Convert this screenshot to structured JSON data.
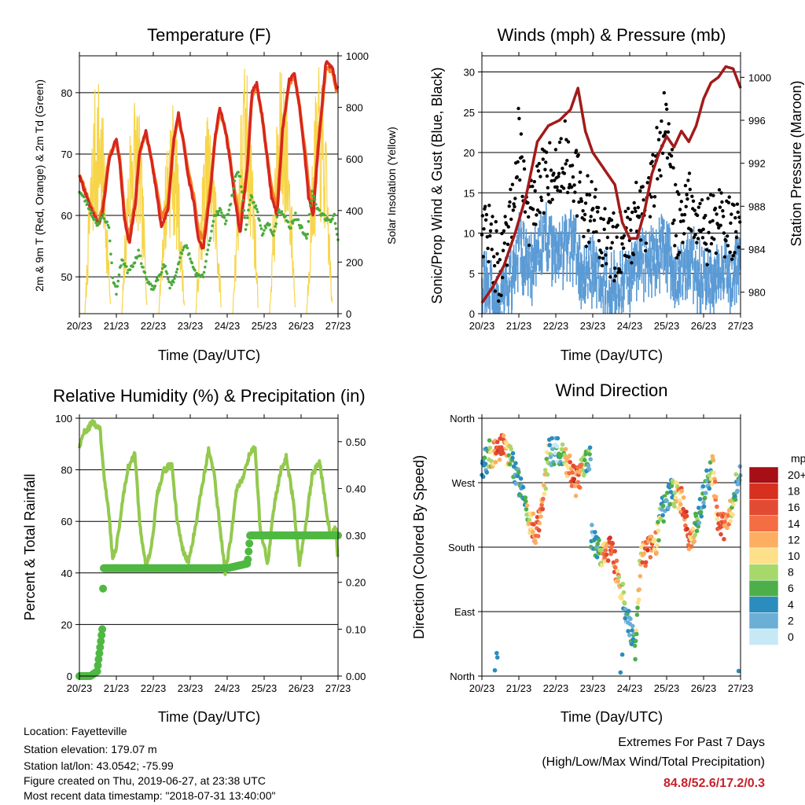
{
  "x_ticks": [
    "20/23",
    "21/23",
    "22/23",
    "23/23",
    "24/23",
    "25/23",
    "26/23",
    "27/23"
  ],
  "x_label": "Time (Day/UTC)",
  "panels": {
    "temperature": {
      "title": "Temperature (F)",
      "ylabel_left": "2m & 9m T (Red, Orange) & 2m Td (Green)",
      "ylabel_right": "Solar Insolation (Yellow)",
      "left_ticks": [
        "50",
        "60",
        "70",
        "80"
      ],
      "right_ticks": [
        "0",
        "200",
        "400",
        "600",
        "800",
        "1000"
      ]
    },
    "winds": {
      "title": "Winds (mph) & Pressure (mb)",
      "ylabel_left": "Sonic/Prop Wind & Gust (Blue, Black)",
      "ylabel_right": "Station Pressure (Maroon)",
      "left_ticks": [
        "0",
        "5",
        "10",
        "15",
        "20",
        "25",
        "30"
      ],
      "right_ticks": [
        "980",
        "984",
        "988",
        "992",
        "996",
        "1000"
      ]
    },
    "humidity": {
      "title": "Relative Humidity (%) & Precipitation (in)",
      "ylabel_left": "Percent & Total Rainfall",
      "left_ticks": [
        "0",
        "20",
        "40",
        "60",
        "80",
        "100"
      ],
      "right_ticks": [
        "0.00",
        "0.10",
        "0.20",
        "0.30",
        "0.40",
        "0.50"
      ]
    },
    "direction": {
      "title": "Wind Direction",
      "ylabel_left": "Direction (Colored By Speed)",
      "left_ticks": [
        "North",
        "East",
        "South",
        "West",
        "North"
      ],
      "legend_title": "mph",
      "legend_labels": [
        "20+",
        "18",
        "16",
        "14",
        "12",
        "10",
        "8",
        "6",
        "4",
        "2",
        "0"
      ],
      "legend_colors": [
        "#a50f15",
        "#d7301f",
        "#e34a33",
        "#f46d43",
        "#fdae61",
        "#fee08b",
        "#a6d96a",
        "#4daf4a",
        "#2b8cbe",
        "#6baed6",
        "#c6e9f5"
      ]
    }
  },
  "info": {
    "location": "Location: Fayetteville",
    "elevation": "Station elevation: 179.07 m",
    "latlon": "Station lat/lon: 43.0542; -75.99",
    "created": "Figure created on Thu, 2019-06-27, at 23:38 UTC",
    "recent": "Most recent data timestamp: \"2018-07-31 13:40:00\""
  },
  "extremes": {
    "title": "Extremes For Past 7 Days",
    "subtitle": "(High/Low/Max Wind/Total Precipitation)",
    "values": "84.8/52.6/17.2/0.3",
    "color": "#c8202a"
  },
  "colors": {
    "temp_2m": "#d7261e",
    "temp_9m": "#f58025",
    "dewpoint": "#4aab3c",
    "solar": "#f7d54a",
    "wind": "#5b9bd5",
    "gust": "#000000",
    "pressure": "#a31a1a",
    "rh": "#93c94e",
    "precip": "#4fb842"
  },
  "chart_data": [
    {
      "type": "line",
      "title": "Temperature (F)",
      "x_range": [
        "20/23",
        "27/23"
      ],
      "ylim": [
        44,
        86
      ],
      "ylim_right": [
        0,
        1000
      ],
      "series": [
        {
          "key": "t2m",
          "x": [
            20.0,
            20.28,
            20.52,
            20.62,
            20.8,
            21.0,
            21.1,
            21.22,
            21.35,
            21.52,
            21.62,
            21.8,
            21.95,
            22.08,
            22.22,
            22.4,
            22.55,
            22.68,
            22.82,
            22.95,
            23.1,
            23.22,
            23.35,
            23.55,
            23.68,
            23.8,
            23.95,
            24.05,
            24.2,
            24.35,
            24.55,
            24.67,
            24.8,
            24.95,
            25.05,
            25.2,
            25.35,
            25.5,
            25.68,
            25.82,
            25.95,
            26.1,
            26.2,
            26.33,
            26.45,
            26.67,
            26.85,
            26.97,
            27.0
          ],
          "y": [
            66.5,
            61.5,
            58.5,
            60.0,
            69.0,
            72.5,
            68.0,
            59.5,
            55.5,
            62.0,
            70.0,
            74.0,
            69.0,
            64.0,
            58.0,
            61.0,
            72.0,
            76.5,
            72.0,
            66.0,
            62.0,
            56.0,
            54.5,
            64.0,
            73.0,
            77.5,
            74.0,
            70.0,
            63.0,
            57.0,
            68.0,
            80.0,
            81.5,
            76.0,
            71.0,
            63.0,
            60.0,
            74.0,
            82.0,
            83.0,
            78.0,
            70.0,
            63.0,
            60.0,
            70.0,
            85.0,
            84.0,
            80.5,
            81.0
          ]
        },
        {
          "key": "t9m",
          "x": [
            20.0,
            20.28,
            20.52,
            20.62,
            20.8,
            21.0,
            21.1,
            21.22,
            21.35,
            21.52,
            21.62,
            21.8,
            21.95,
            22.08,
            22.22,
            22.4,
            22.55,
            22.68,
            22.82,
            22.95,
            23.1,
            23.22,
            23.35,
            23.55,
            23.68,
            23.8,
            23.95,
            24.05,
            24.2,
            24.35,
            24.55,
            24.67,
            24.8,
            24.95,
            25.05,
            25.2,
            25.35,
            25.5,
            25.68,
            25.82,
            25.95,
            26.1,
            26.2,
            26.33,
            26.45,
            26.67,
            26.85,
            26.97,
            27.0
          ],
          "y": [
            66.8,
            62.0,
            59.0,
            61.0,
            69.5,
            72.0,
            69.0,
            60.0,
            56.5,
            63.0,
            70.0,
            73.5,
            69.0,
            65.0,
            59.5,
            62.0,
            72.0,
            76.0,
            72.0,
            67.0,
            63.0,
            57.5,
            56.0,
            65.0,
            73.0,
            77.0,
            74.0,
            70.5,
            64.0,
            58.5,
            68.0,
            79.5,
            81.0,
            76.0,
            71.0,
            64.5,
            61.0,
            74.0,
            81.5,
            82.5,
            78.0,
            71.0,
            65.0,
            61.0,
            70.5,
            84.0,
            83.5,
            80.0,
            80.5
          ]
        },
        {
          "key": "td2m",
          "x": [
            20.0,
            20.2,
            20.35,
            20.5,
            20.65,
            20.8,
            20.9,
            21.0,
            21.15,
            21.3,
            21.45,
            21.6,
            21.75,
            21.85,
            22.0,
            22.15,
            22.3,
            22.45,
            22.6,
            22.75,
            22.9,
            23.05,
            23.2,
            23.35,
            23.5,
            23.65,
            23.8,
            23.95,
            24.1,
            24.25,
            24.35,
            24.5,
            24.65,
            24.8,
            24.95,
            25.1,
            25.25,
            25.4,
            25.55,
            25.7,
            25.85,
            26.0,
            26.15,
            26.3,
            26.45,
            26.6,
            26.75,
            26.9,
            27.0
          ],
          "y": [
            64.0,
            62.0,
            60.0,
            58.5,
            60.0,
            58.0,
            50.0,
            47.5,
            53.0,
            51.0,
            52.0,
            54.0,
            51.0,
            49.0,
            48.0,
            50.0,
            52.0,
            48.5,
            50.0,
            54.0,
            55.0,
            52.0,
            50.0,
            50.0,
            55.0,
            60.0,
            61.0,
            59.0,
            62.0,
            67.0,
            66.5,
            58.0,
            63.0,
            61.0,
            57.0,
            59.0,
            57.0,
            61.0,
            60.0,
            58.0,
            60.0,
            58.0,
            56.0,
            64.0,
            61.0,
            60.0,
            59.0,
            60.0,
            56.0
          ]
        },
        {
          "key": "solar",
          "axis": "right",
          "peaks_x": [
            20.5,
            21.5,
            22.5,
            23.5,
            24.5,
            25.5,
            26.5
          ],
          "peaks_y": [
            940,
            900,
            840,
            780,
            980,
            990,
            960
          ]
        }
      ]
    },
    {
      "type": "line",
      "title": "Winds (mph) & Pressure (mb)",
      "x_range": [
        "20/23",
        "27/23"
      ],
      "ylim": [
        0,
        32
      ],
      "ylim_right": [
        978,
        1002
      ],
      "series": [
        {
          "key": "wind",
          "x": [
            20.0,
            20.25,
            20.5,
            20.75,
            21.0,
            21.25,
            21.5,
            21.75,
            22.0,
            22.25,
            22.5,
            22.75,
            23.0,
            23.25,
            23.5,
            23.75,
            24.0,
            24.25,
            24.5,
            24.75,
            25.0,
            25.25,
            25.5,
            25.75,
            26.0,
            26.25,
            26.5,
            26.75,
            27.0
          ],
          "y": [
            6,
            4,
            2,
            6,
            10,
            7,
            9,
            11,
            8,
            10,
            10,
            6,
            7,
            5,
            5,
            5,
            6,
            8,
            8,
            9,
            10,
            5,
            7,
            8,
            6,
            6,
            7,
            6,
            8
          ]
        },
        {
          "key": "gust",
          "x": [
            20.0,
            20.25,
            20.5,
            20.75,
            21.0,
            21.25,
            21.5,
            21.75,
            22.0,
            22.25,
            22.5,
            22.75,
            23.0,
            23.25,
            23.5,
            23.75,
            24.0,
            24.25,
            24.5,
            24.75,
            25.0,
            25.25,
            25.5,
            25.75,
            26.0,
            26.25,
            26.5,
            26.75,
            27.0
          ],
          "y": [
            12,
            9,
            5,
            10,
            22,
            12,
            14,
            18,
            17,
            20,
            18,
            12,
            14,
            9,
            8,
            9,
            10,
            13,
            12,
            20,
            24,
            11,
            13,
            14,
            10,
            11,
            12,
            10,
            13
          ]
        },
        {
          "key": "pressure",
          "axis": "right",
          "x": [
            20.0,
            20.3,
            20.6,
            20.9,
            21.2,
            21.5,
            21.8,
            22.1,
            22.4,
            22.6,
            22.8,
            23.0,
            23.2,
            23.4,
            23.6,
            23.8,
            24.0,
            24.2,
            24.4,
            24.6,
            24.8,
            25.0,
            25.2,
            25.4,
            25.6,
            25.8,
            26.0,
            26.2,
            26.4,
            26.6,
            26.8,
            27.0
          ],
          "y": [
            979.0,
            980.5,
            982.5,
            985.5,
            989.0,
            994.0,
            995.5,
            996.0,
            997.0,
            999.0,
            995.0,
            993.0,
            992.0,
            991.0,
            990.0,
            986.5,
            985.0,
            985.0,
            987.5,
            991.0,
            993.0,
            994.5,
            993.5,
            995.0,
            994.0,
            995.5,
            998.0,
            999.5,
            1000.0,
            1001.0,
            1000.8,
            999.0
          ]
        }
      ]
    },
    {
      "type": "line",
      "title": "Relative Humidity (%) & Precipitation (in)",
      "x_range": [
        "20/23",
        "27/23"
      ],
      "ylim": [
        0,
        100
      ],
      "ylim_right": [
        0,
        0.55
      ],
      "series": [
        {
          "key": "rh",
          "x": [
            20.0,
            20.15,
            20.35,
            20.55,
            20.65,
            20.8,
            20.9,
            21.0,
            21.15,
            21.3,
            21.5,
            21.65,
            21.8,
            21.95,
            22.1,
            22.3,
            22.5,
            22.65,
            22.8,
            22.95,
            23.1,
            23.3,
            23.5,
            23.65,
            23.8,
            23.95,
            24.1,
            24.25,
            24.45,
            24.6,
            24.75,
            24.9,
            25.1,
            25.25,
            25.45,
            25.6,
            25.8,
            25.95,
            26.1,
            26.3,
            26.5,
            26.65,
            26.8,
            26.95,
            27.0
          ],
          "y": [
            89,
            95,
            98,
            97,
            80,
            62,
            46,
            50,
            66,
            80,
            86,
            57,
            43,
            50,
            70,
            80,
            82,
            60,
            49,
            44,
            55,
            72,
            88,
            78,
            58,
            40,
            54,
            72,
            78,
            86,
            89,
            56,
            44,
            64,
            80,
            85,
            67,
            43,
            56,
            78,
            83,
            68,
            54,
            58,
            42
          ]
        },
        {
          "key": "precip",
          "axis": "right",
          "x": [
            20.0,
            20.3,
            20.48,
            20.62,
            20.65,
            21.0,
            22.0,
            23.0,
            24.0,
            24.55,
            24.62,
            25.0,
            26.0,
            27.0
          ],
          "y": [
            0.0,
            0.0,
            0.01,
            0.1,
            0.23,
            0.23,
            0.23,
            0.23,
            0.23,
            0.24,
            0.3,
            0.3,
            0.3,
            0.3
          ]
        }
      ]
    },
    {
      "type": "scatter",
      "title": "Wind Direction",
      "x_range": [
        "20/23",
        "27/23"
      ],
      "ylim": [
        0,
        360
      ],
      "series": [
        {
          "key": "dir_high",
          "x": [
            20.0,
            20.2,
            20.4,
            20.6,
            20.75,
            20.9,
            21.1,
            21.25,
            21.45,
            21.6,
            21.8,
            22.0,
            22.2,
            22.4,
            22.55,
            22.7,
            22.85
          ],
          "y": [
            290,
            310,
            315,
            320,
            305,
            285,
            260,
            225,
            200,
            230,
            310,
            315,
            305,
            290,
            270,
            285,
            300
          ]
        },
        {
          "key": "dir_low",
          "x": [
            23.0,
            23.15,
            23.3,
            23.5,
            23.6,
            23.75,
            23.9,
            24.0,
            24.15,
            24.3,
            24.5,
            24.7,
            24.85,
            25.0,
            25.15,
            25.3,
            25.45,
            25.6,
            25.75,
            25.9,
            26.1,
            26.25,
            26.4,
            26.6,
            26.8,
            27.0
          ],
          "y": [
            195,
            180,
            165,
            175,
            160,
            120,
            95,
            70,
            40,
            170,
            175,
            180,
            225,
            245,
            260,
            250,
            240,
            190,
            200,
            235,
            270,
            290,
            215,
            205,
            240,
            300
          ]
        }
      ]
    }
  ]
}
